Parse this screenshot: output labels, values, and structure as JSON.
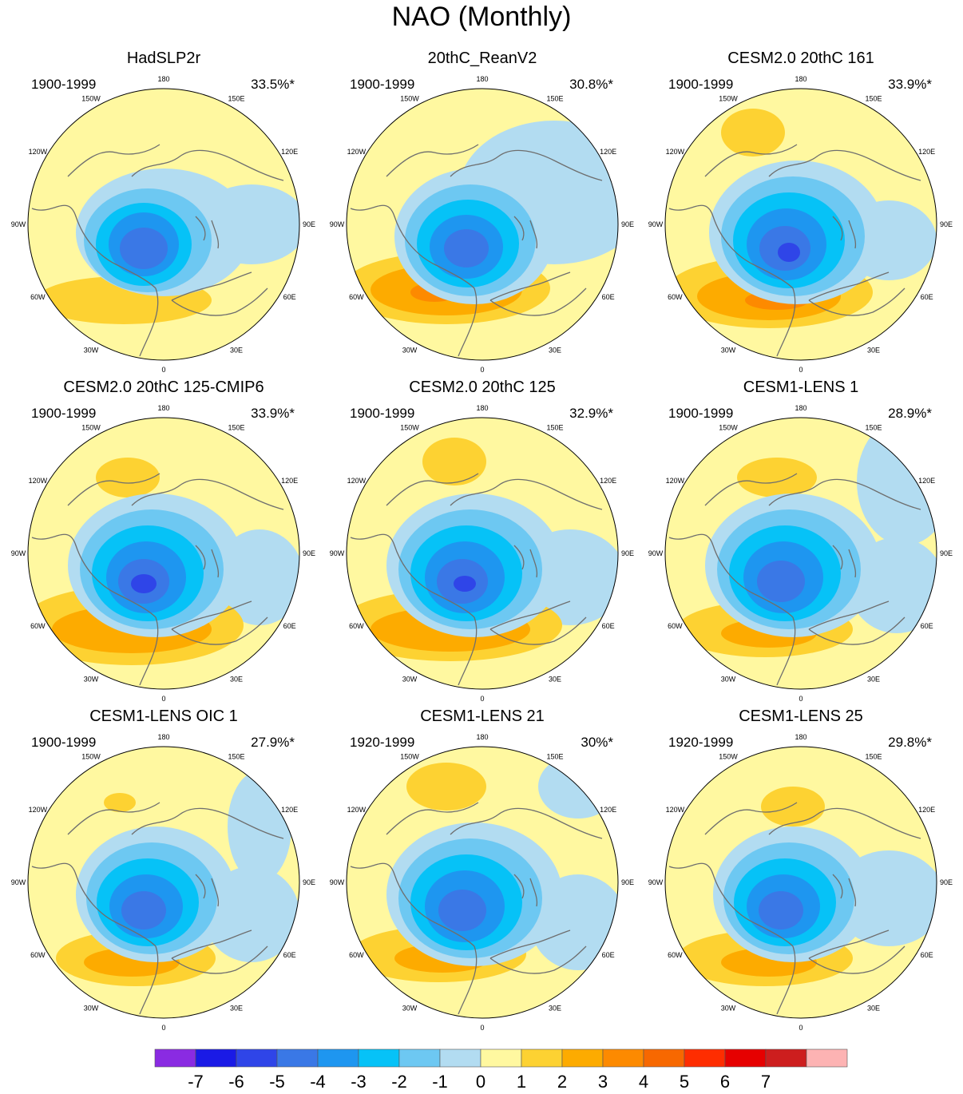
{
  "title": "NAO (Monthly)",
  "panels": [
    {
      "name": "HadSLP2r",
      "period": "1900-1999",
      "variance": "33.5%*"
    },
    {
      "name": "20thC_ReanV2",
      "period": "1900-1999",
      "variance": "30.8%*"
    },
    {
      "name": "CESM2.0 20thC 161",
      "period": "1900-1999",
      "variance": "33.9%*"
    },
    {
      "name": "CESM2.0 20thC 125-CMIP6",
      "period": "1900-1999",
      "variance": "33.9%*"
    },
    {
      "name": "CESM2.0 20thC 125",
      "period": "1900-1999",
      "variance": "32.9%*"
    },
    {
      "name": "CESM1-LENS 1",
      "period": "1900-1999",
      "variance": "28.9%*"
    },
    {
      "name": "CESM1-LENS OIC 1",
      "period": "1900-1999",
      "variance": "27.9%*"
    },
    {
      "name": "CESM1-LENS 21",
      "period": "1920-1999",
      "variance": "30%*"
    },
    {
      "name": "CESM1-LENS 25",
      "period": "1920-1999",
      "variance": "29.8%*"
    }
  ],
  "lon_labels": [
    "180",
    "150E",
    "120E",
    "90E",
    "60E",
    "30E",
    "0",
    "30W",
    "60W",
    "90W",
    "120W",
    "150W"
  ],
  "colorbar": {
    "labels": [
      "-7",
      "-6",
      "-5",
      "-4",
      "-3",
      "-2",
      "-1",
      "0",
      "1",
      "2",
      "3",
      "4",
      "5",
      "6",
      "7"
    ],
    "colors": [
      "#8a2be2",
      "#1a1ae6",
      "#2f45e8",
      "#3a78e6",
      "#1e96f0",
      "#06c2f7",
      "#6dc8f2",
      "#b2dcf1",
      "#fff8a0",
      "#fdd232",
      "#fdab00",
      "#fd8a00",
      "#f76800",
      "#fe2d00",
      "#e60000",
      "#cd1e1e",
      "#fdb3b3"
    ]
  }
}
